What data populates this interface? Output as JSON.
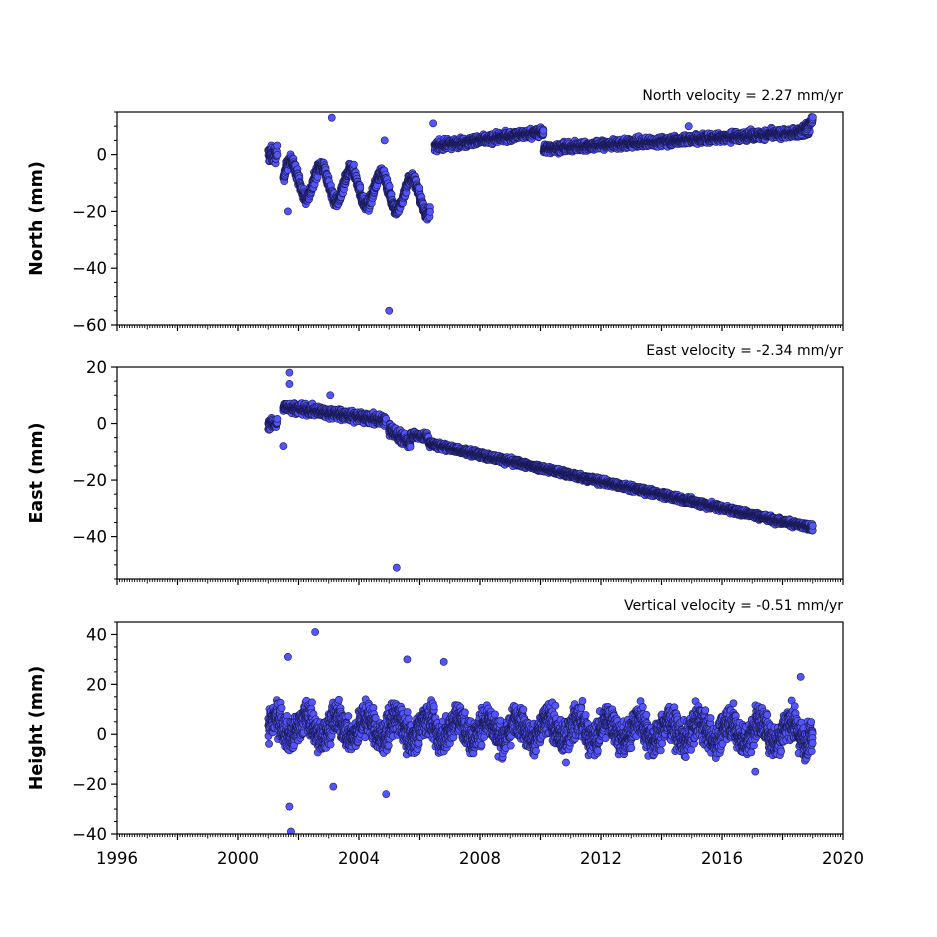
{
  "chart_data": [
    {
      "type": "scatter",
      "ylabel": "North (mm)",
      "annotation": "North velocity = 2.27 mm/yr",
      "xlim": [
        1996,
        2020
      ],
      "ylim": [
        -60,
        15
      ],
      "yticks": [
        0,
        -20,
        -40,
        -60
      ],
      "yticklabels": [
        "0",
        "−20",
        "−40",
        "−60"
      ],
      "marker_color": "#5555ff",
      "edge_color": "#1a1a55",
      "segments": [
        {
          "x": [
            2001.0,
            2001.3
          ],
          "y": [
            0,
            0
          ],
          "spread": 4
        },
        {
          "x": [
            2001.5,
            2006.35
          ],
          "y": [
            -8,
            -15
          ],
          "spread": 3,
          "seasonal": 6
        },
        {
          "x": [
            2006.5,
            2010.1
          ],
          "y": [
            3,
            8
          ],
          "spread": 2.2
        },
        {
          "x": [
            2010.1,
            2018.9
          ],
          "y": [
            2,
            8
          ],
          "spread": 2.2
        },
        {
          "x": [
            2018.5,
            2019.0
          ],
          "y": [
            7,
            12
          ],
          "spread": 2
        }
      ],
      "outliers": [
        {
          "x": 2003.1,
          "y": 13
        },
        {
          "x": 2005.0,
          "y": -55
        },
        {
          "x": 2004.85,
          "y": 5
        },
        {
          "x": 2006.45,
          "y": 11
        },
        {
          "x": 2014.9,
          "y": 10
        },
        {
          "x": 2001.65,
          "y": -20
        }
      ]
    },
    {
      "type": "scatter",
      "ylabel": "East (mm)",
      "annotation": "East velocity = -2.34 mm/yr",
      "xlim": [
        1996,
        2020
      ],
      "ylim": [
        -55,
        20
      ],
      "yticks": [
        20,
        0,
        -20,
        -40
      ],
      "yticklabels": [
        "20",
        "0",
        "−20",
        "−40"
      ],
      "marker_color": "#5555ff",
      "edge_color": "#1a1a55",
      "segments": [
        {
          "x": [
            2001.0,
            2001.3
          ],
          "y": [
            0,
            0
          ],
          "spread": 2.5
        },
        {
          "x": [
            2001.5,
            2004.9
          ],
          "y": [
            6,
            1
          ],
          "spread": 2.5
        },
        {
          "x": [
            2005.0,
            2005.7
          ],
          "y": [
            -2,
            -7
          ],
          "spread": 3
        },
        {
          "x": [
            2005.7,
            2006.3
          ],
          "y": [
            -4,
            -5
          ],
          "spread": 2
        },
        {
          "x": [
            2006.3,
            2019.0
          ],
          "y": [
            -7,
            -37
          ],
          "spread": 1.6
        }
      ],
      "outliers": [
        {
          "x": 2001.7,
          "y": 18
        },
        {
          "x": 2005.25,
          "y": -51
        },
        {
          "x": 2001.5,
          "y": -8
        },
        {
          "x": 2001.7,
          "y": 14
        },
        {
          "x": 2003.05,
          "y": 10
        }
      ]
    },
    {
      "type": "scatter",
      "ylabel": "Height (mm)",
      "annotation": "Vertical velocity = -0.51 mm/yr",
      "xlim": [
        1996,
        2020
      ],
      "ylim": [
        -40,
        45
      ],
      "xticks": [
        1996,
        2000,
        2004,
        2008,
        2012,
        2016,
        2020
      ],
      "xticklabels": [
        "1996",
        "2000",
        "2004",
        "2008",
        "2012",
        "2016",
        "2020"
      ],
      "yticks": [
        40,
        20,
        0,
        -20,
        -40
      ],
      "yticklabels": [
        "40",
        "20",
        "0",
        "−20",
        "−40"
      ],
      "marker_color": "#5555ff",
      "edge_color": "#1a1a55",
      "segments": [
        {
          "x": [
            2001.0,
            2019.0
          ],
          "y": [
            3,
            1
          ],
          "spread": 9,
          "seasonal": 4
        }
      ],
      "outliers": [
        {
          "x": 2002.55,
          "y": 41
        },
        {
          "x": 2001.65,
          "y": 31
        },
        {
          "x": 2001.7,
          "y": -29
        },
        {
          "x": 2001.75,
          "y": -39
        },
        {
          "x": 2003.15,
          "y": -21
        },
        {
          "x": 2004.9,
          "y": -24
        },
        {
          "x": 2005.6,
          "y": 30
        },
        {
          "x": 2006.8,
          "y": 29
        },
        {
          "x": 2018.6,
          "y": 23
        },
        {
          "x": 2017.1,
          "y": -15
        }
      ]
    }
  ]
}
